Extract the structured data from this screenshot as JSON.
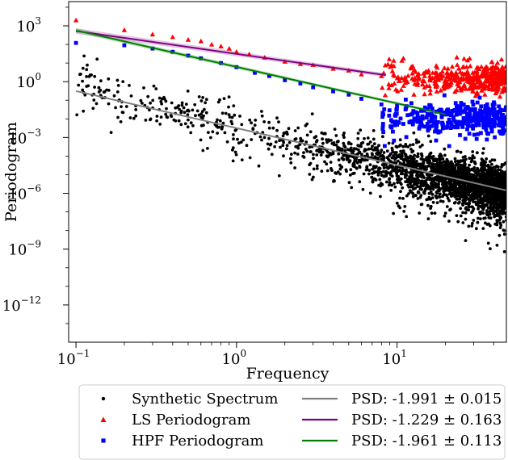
{
  "chart_data": {
    "type": "scatter",
    "xlabel": "Frequency",
    "ylabel": "Periodogram",
    "x_scale": "log",
    "y_scale": "log",
    "xlim": [
      0.09,
      48
    ],
    "ylim": [
      1e-14,
      20000.0
    ],
    "x_ticks": [
      {
        "value": 0.1,
        "label": "10",
        "exp": "−1"
      },
      {
        "value": 1,
        "label": "10",
        "exp": "0"
      },
      {
        "value": 10,
        "label": "10",
        "exp": "1"
      }
    ],
    "y_ticks": [
      {
        "value": 1000.0,
        "label": "10",
        "exp": "3"
      },
      {
        "value": 1,
        "label": "10",
        "exp": "0"
      },
      {
        "value": 0.001,
        "label": "10",
        "exp": "−3"
      },
      {
        "value": 1e-06,
        "label": "10",
        "exp": "−6"
      },
      {
        "value": 1e-09,
        "label": "10",
        "exp": "−9"
      },
      {
        "value": 1e-12,
        "label": "10",
        "exp": "−12"
      }
    ],
    "grid": false,
    "legend_position": "bottom",
    "series": [
      {
        "name": "Synthetic Spectrum",
        "kind": "scatter",
        "marker": "circle",
        "color": "#000000",
        "x_range": [
          0.1,
          48
        ],
        "trend_slope": -1.991,
        "trend_intercept_at_1": 0.005,
        "scatter_decades": 2.5,
        "n_points": 2600
      },
      {
        "name": "LS Periodogram",
        "kind": "scatter",
        "marker": "triangle",
        "color": "#ff0000",
        "x_range": [
          0.1,
          48
        ],
        "points": [
          [
            0.1,
            2000
          ],
          [
            0.2,
            600
          ],
          [
            0.3,
            350
          ],
          [
            0.4,
            250
          ],
          [
            0.5,
            180
          ],
          [
            0.6,
            150
          ],
          [
            0.7,
            100
          ],
          [
            0.8,
            80
          ],
          [
            0.9,
            60
          ],
          [
            1.0,
            40
          ],
          [
            1.2,
            30
          ],
          [
            1.5,
            20
          ],
          [
            2.0,
            12
          ],
          [
            2.5,
            9
          ],
          [
            3.0,
            8
          ],
          [
            4.0,
            5
          ],
          [
            5.0,
            4
          ],
          [
            6.0,
            2.5
          ],
          [
            8.0,
            2
          ]
        ],
        "high_freq_level": 1.5,
        "high_freq_spread_decades": 0.9,
        "n_points": 380
      },
      {
        "name": "HPF Periodogram",
        "kind": "scatter",
        "marker": "square",
        "color": "#0000ff",
        "x_range": [
          0.1,
          48
        ],
        "points": [
          [
            0.1,
            120
          ],
          [
            0.2,
            90
          ],
          [
            0.3,
            60
          ],
          [
            0.4,
            40
          ],
          [
            0.5,
            25
          ],
          [
            0.6,
            18
          ],
          [
            0.8,
            10
          ],
          [
            1.0,
            6
          ],
          [
            1.3,
            3
          ],
          [
            1.6,
            2
          ],
          [
            2.0,
            1.2
          ],
          [
            2.5,
            0.8
          ],
          [
            3.0,
            0.5
          ],
          [
            4.0,
            0.3
          ],
          [
            5.0,
            0.2
          ],
          [
            6.0,
            0.12
          ],
          [
            8.0,
            0.06
          ],
          [
            10.0,
            0.05
          ]
        ],
        "high_freq_level": 0.01,
        "high_freq_spread_decades": 1.0,
        "n_points": 380
      }
    ],
    "fits": [
      {
        "name": "PSD: -1.991 ± 0.015",
        "color": "#808080",
        "slope": -1.991,
        "x_range": [
          0.1,
          48
        ],
        "y_at_1": 0.0032,
        "band": 0.0
      },
      {
        "name": "PSD: -1.229 ± 0.163",
        "color": "#800080",
        "slope": -1.229,
        "x_range": [
          0.1,
          8.5
        ],
        "y_at_1": 31,
        "band": 0.15
      },
      {
        "name": "PSD: -1.961 ± 0.113",
        "color": "#008000",
        "slope": -1.961,
        "x_range": [
          0.1,
          20
        ],
        "y_at_1": 6.2,
        "band": 0.12
      }
    ],
    "legend": {
      "left": [
        "Synthetic Spectrum",
        "LS Periodogram",
        "HPF Periodogram"
      ],
      "right": [
        "PSD: -1.991 ± 0.015",
        "PSD: -1.229 ± 0.163",
        "PSD: -1.961 ± 0.113"
      ]
    }
  }
}
